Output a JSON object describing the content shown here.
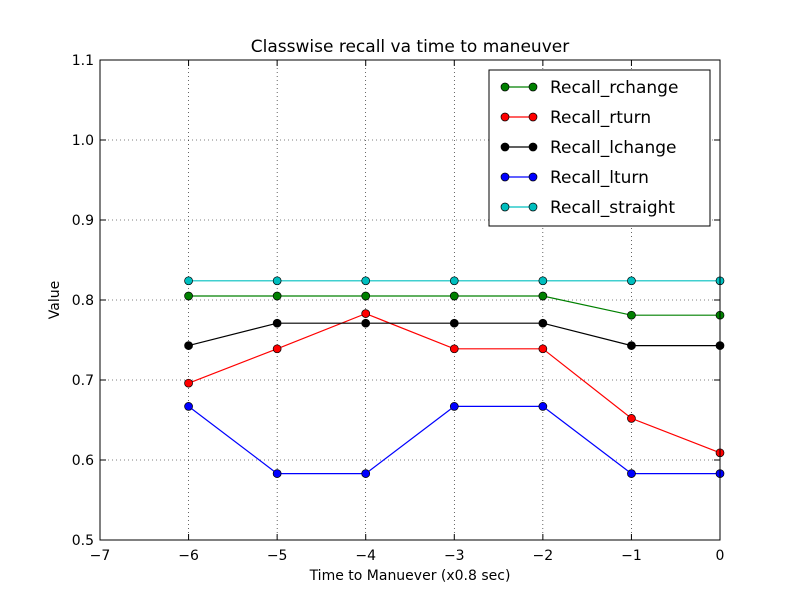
{
  "chart_data": {
    "type": "line",
    "title": "Classwise recall va time to maneuver",
    "xlabel": "Time to Manuever (x0.8 sec)",
    "ylabel": "Value",
    "xlim": [
      -7,
      0
    ],
    "ylim": [
      0.5,
      1.1
    ],
    "xticks": [
      -7,
      -6,
      -5,
      -4,
      -3,
      -2,
      -1,
      0
    ],
    "xtick_labels": [
      "−7",
      "−6",
      "−5",
      "−4",
      "−3",
      "−2",
      "−1",
      "0"
    ],
    "yticks": [
      0.5,
      0.6,
      0.7,
      0.8,
      0.9,
      1.0,
      1.1
    ],
    "ytick_labels": [
      "0.5",
      "0.6",
      "0.7",
      "0.8",
      "0.9",
      "1.0",
      "1.1"
    ],
    "grid": true,
    "legend_position": "top-right",
    "x": [
      -6,
      -5,
      -4,
      -3,
      -2,
      -1,
      0
    ],
    "series": [
      {
        "name": "Recall_rchange",
        "color": "#008000",
        "values": [
          0.805,
          0.805,
          0.805,
          0.805,
          0.805,
          0.781,
          0.781
        ]
      },
      {
        "name": "Recall_rturn",
        "color": "#ff0000",
        "values": [
          0.696,
          0.739,
          0.783,
          0.739,
          0.739,
          0.652,
          0.609
        ]
      },
      {
        "name": "Recall_lchange",
        "color": "#000000",
        "values": [
          0.743,
          0.771,
          0.771,
          0.771,
          0.771,
          0.743,
          0.743
        ]
      },
      {
        "name": "Recall_lturn",
        "color": "#0000ff",
        "values": [
          0.667,
          0.583,
          0.583,
          0.667,
          0.667,
          0.583,
          0.583
        ]
      },
      {
        "name": "Recall_straight",
        "color": "#00bfbf",
        "values": [
          0.824,
          0.824,
          0.824,
          0.824,
          0.824,
          0.824,
          0.824
        ]
      }
    ]
  }
}
